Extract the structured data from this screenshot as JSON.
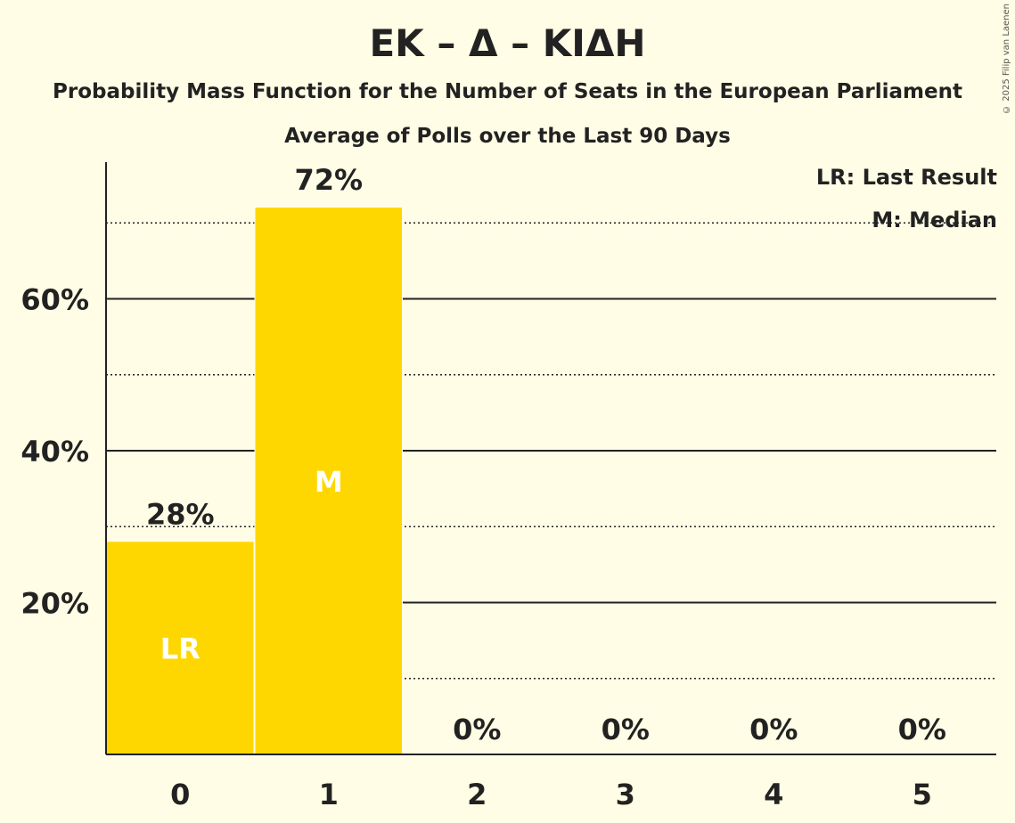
{
  "header": {
    "title": "ΕΚ – Δ – ΚΙΔΗ",
    "subtitle": "Probability Mass Function for the Number of Seats in the European Parliament",
    "subtitle2": "Average of Polls over the Last 90 Days",
    "copyright": "© 2025 Filip van Laenen"
  },
  "legend": {
    "last_result": "LR: Last Result",
    "median": "M: Median"
  },
  "colors": {
    "background": "#FFFDE5",
    "bar": "#FFD700",
    "text": "#222222"
  },
  "chart_data": {
    "type": "bar",
    "title": "ΕΚ – Δ – ΚΙΔΗ",
    "categories": [
      "0",
      "1",
      "2",
      "3",
      "4",
      "5"
    ],
    "values": [
      28,
      72,
      0,
      0,
      0,
      0
    ],
    "value_labels": [
      "28%",
      "72%",
      "0%",
      "0%",
      "0%",
      "0%"
    ],
    "bar_markers": [
      "LR",
      "M",
      "",
      "",
      "",
      ""
    ],
    "ylim": [
      0,
      78
    ],
    "y_ticks": [
      20,
      40,
      60
    ],
    "y_tick_labels": [
      "20%",
      "40%",
      "60%"
    ],
    "minor_gridlines": [
      10,
      30,
      50,
      70
    ],
    "grid": true,
    "legend_position": "top-right"
  }
}
